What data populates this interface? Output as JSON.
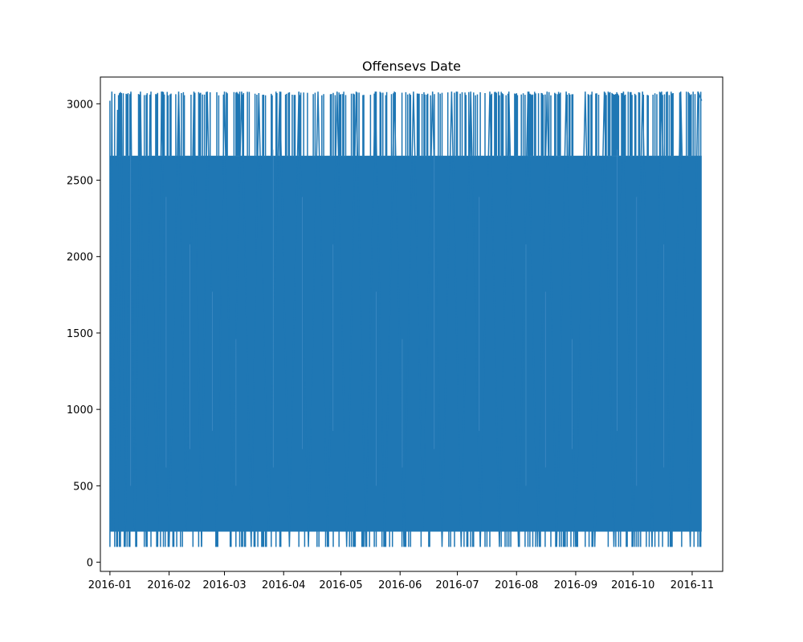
{
  "chart_data": {
    "type": "line",
    "title": "Offensevs Date",
    "xlabel": "",
    "ylabel": "",
    "x_range": [
      "2015-12-27",
      "2016-11-17"
    ],
    "ylim": [
      -60,
      3175
    ],
    "x_ticks": [
      "2016-01",
      "2016-02",
      "2016-03",
      "2016-04",
      "2016-05",
      "2016-06",
      "2016-07",
      "2016-08",
      "2016-09",
      "2016-10",
      "2016-11"
    ],
    "y_ticks": [
      0,
      500,
      1000,
      1500,
      2000,
      2500,
      3000
    ],
    "grid": false,
    "legend": "none",
    "series": [
      {
        "color": "#1f77b4",
        "x_start": "2016-01-01",
        "x_end": "2016-11-06",
        "band_low": 200,
        "band_high": 2660,
        "min": 100,
        "max": 3080,
        "points": [
          [
            "2016-01-01",
            3020
          ],
          [
            "2016-01-01",
            100
          ],
          [
            "2016-01-02",
            3080
          ],
          [
            "2016-01-03",
            200
          ],
          [
            "2016-01-05",
            2960
          ],
          [
            "2016-01-06",
            100
          ],
          [
            "2016-01-07",
            3070
          ],
          [
            "2016-01-09",
            100
          ],
          [
            "2016-01-12",
            3080
          ],
          [
            "2016-01-14",
            200
          ],
          [
            "2016-01-17",
            3080
          ],
          [
            "2016-01-20",
            100
          ],
          [
            "2016-01-22",
            3060
          ],
          [
            "2016-01-26",
            100
          ],
          [
            "2016-01-28",
            3080
          ],
          [
            "2016-02-01",
            100
          ],
          [
            "2016-02-06",
            3080
          ],
          [
            "2016-02-10",
            200
          ],
          [
            "2016-02-14",
            3080
          ],
          [
            "2016-02-18",
            100
          ],
          [
            "2016-02-21",
            3080
          ],
          [
            "2016-02-26",
            100
          ],
          [
            "2016-03-01",
            3080
          ],
          [
            "2016-03-05",
            390
          ],
          [
            "2016-03-10",
            3080
          ],
          [
            "2016-03-15",
            100
          ],
          [
            "2016-03-19",
            3070
          ],
          [
            "2016-03-24",
            200
          ],
          [
            "2016-03-30",
            3080
          ],
          [
            "2016-04-04",
            100
          ],
          [
            "2016-04-09",
            3080
          ],
          [
            "2016-04-14",
            100
          ],
          [
            "2016-04-19",
            3080
          ],
          [
            "2016-04-24",
            100
          ],
          [
            "2016-04-29",
            3080
          ],
          [
            "2016-05-04",
            100
          ],
          [
            "2016-05-09",
            3080
          ],
          [
            "2016-05-14",
            100
          ],
          [
            "2016-05-19",
            3080
          ],
          [
            "2016-05-24",
            100
          ],
          [
            "2016-05-29",
            3080
          ],
          [
            "2016-06-03",
            100
          ],
          [
            "2016-06-08",
            3080
          ],
          [
            "2016-06-13",
            200
          ],
          [
            "2016-06-18",
            3080
          ],
          [
            "2016-06-23",
            100
          ],
          [
            "2016-06-28",
            3080
          ],
          [
            "2016-07-03",
            100
          ],
          [
            "2016-07-08",
            3080
          ],
          [
            "2016-07-13",
            100
          ],
          [
            "2016-07-18",
            3080
          ],
          [
            "2016-07-23",
            100
          ],
          [
            "2016-07-28",
            3080
          ],
          [
            "2016-08-02",
            100
          ],
          [
            "2016-08-07",
            3080
          ],
          [
            "2016-08-12",
            100
          ],
          [
            "2016-08-17",
            3080
          ],
          [
            "2016-08-22",
            100
          ],
          [
            "2016-08-27",
            3080
          ],
          [
            "2016-09-01",
            100
          ],
          [
            "2016-09-06",
            3080
          ],
          [
            "2016-09-11",
            100
          ],
          [
            "2016-09-16",
            3080
          ],
          [
            "2016-09-21",
            100
          ],
          [
            "2016-09-26",
            3080
          ],
          [
            "2016-10-01",
            100
          ],
          [
            "2016-10-06",
            3080
          ],
          [
            "2016-10-11",
            100
          ],
          [
            "2016-10-16",
            3080
          ],
          [
            "2016-10-21",
            100
          ],
          [
            "2016-10-26",
            3080
          ],
          [
            "2016-10-31",
            100
          ],
          [
            "2016-11-04",
            3080
          ],
          [
            "2016-11-06",
            3020
          ]
        ]
      }
    ]
  }
}
